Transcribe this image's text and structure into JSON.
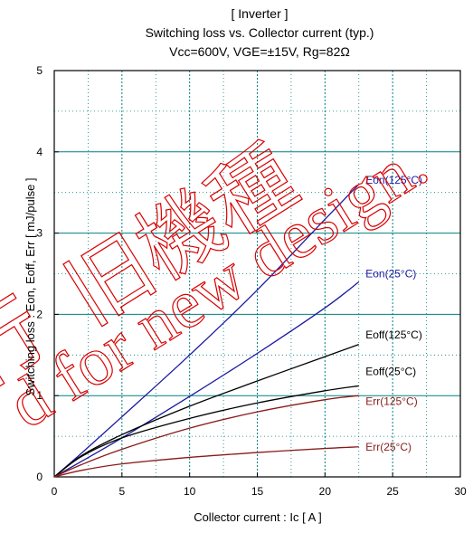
{
  "chart_data": {
    "type": "line",
    "title": [
      "[ Inverter ]",
      "Switching loss  vs.  Collector current  (typ.)",
      "Vcc=600V, VGE=±15V, Rg=82Ω"
    ],
    "xlabel": "Collector current  :  Ic  [ A ]",
    "ylabel": "Switching loss  :  Eon, Eoff, Err  [ mJ/pulse ]",
    "xlim": [
      0,
      30
    ],
    "ylim": [
      0,
      5
    ],
    "xticks": [
      0,
      5,
      10,
      15,
      20,
      25,
      30
    ],
    "yticks": [
      0,
      1,
      2,
      3,
      4,
      5
    ],
    "grid": true,
    "series": [
      {
        "name": "Eon(125°C)",
        "color": "#1a1aa0",
        "x": [
          0,
          2,
          5,
          10,
          15,
          20,
          22.5
        ],
        "y": [
          0,
          0.29,
          0.74,
          1.5,
          2.3,
          3.17,
          3.6
        ]
      },
      {
        "name": "Eon(25°C)",
        "color": "#1a1aa0",
        "x": [
          0,
          2,
          5,
          10,
          15,
          20,
          22.5
        ],
        "y": [
          0,
          0.19,
          0.48,
          0.99,
          1.52,
          2.08,
          2.4
        ]
      },
      {
        "name": "Eoff(125°C)",
        "color": "#000000",
        "x": [
          0,
          2,
          5,
          10,
          15,
          20,
          22.5
        ],
        "y": [
          0,
          0.26,
          0.52,
          0.87,
          1.18,
          1.48,
          1.63
        ]
      },
      {
        "name": "Eoff(25°C)",
        "color": "#000000",
        "x": [
          0,
          2,
          5,
          10,
          15,
          20,
          22.5
        ],
        "y": [
          0,
          0.25,
          0.48,
          0.72,
          0.91,
          1.06,
          1.12
        ]
      },
      {
        "name": "Err(125°C)",
        "color": "#8a1a1a",
        "x": [
          0,
          2,
          5,
          10,
          15,
          20,
          22.5
        ],
        "y": [
          0,
          0.15,
          0.34,
          0.6,
          0.8,
          0.95,
          1.0
        ]
      },
      {
        "name": "Err(25°C)",
        "color": "#8a1a1a",
        "x": [
          0,
          2,
          5,
          10,
          15,
          20,
          22.5
        ],
        "y": [
          0,
          0.08,
          0.16,
          0.24,
          0.3,
          0.35,
          0.37
        ]
      }
    ],
    "label_positions_data": [
      {
        "series": "Eon(125°C)",
        "x": 23,
        "y": 3.65
      },
      {
        "series": "Eon(25°C)",
        "x": 23,
        "y": 2.5
      },
      {
        "series": "Eoff(125°C)",
        "x": 23,
        "y": 1.75
      },
      {
        "series": "Eoff(25°C)",
        "x": 23,
        "y": 1.3
      },
      {
        "series": "Err(125°C)",
        "x": 23,
        "y": 0.93
      },
      {
        "series": "Err(25°C)",
        "x": 23,
        "y": 0.37
      }
    ]
  },
  "watermark": {
    "line1": "旧機種",
    "line1_prefix": "行",
    "line2": "d for new design.",
    "color": "#d80000"
  }
}
